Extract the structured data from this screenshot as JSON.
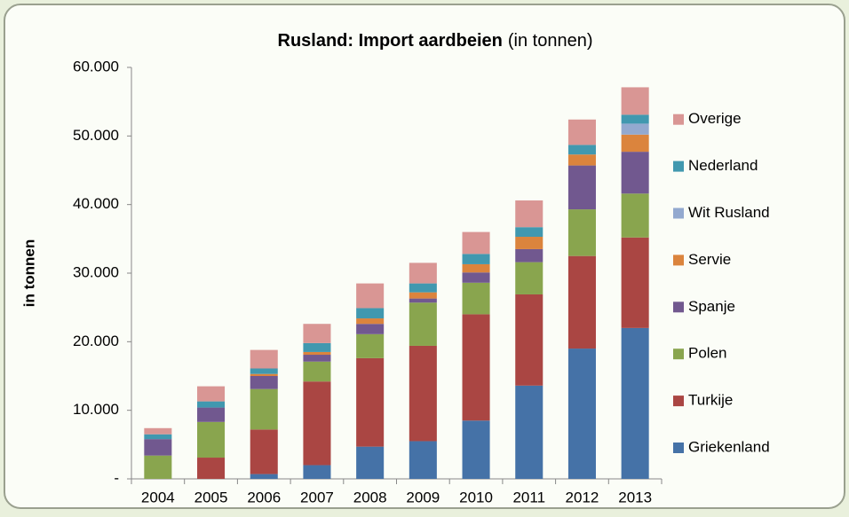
{
  "chart_data": {
    "type": "stacked_bar",
    "title": "Rusland: Import aardbeien",
    "subtitle": "(in tonnen)",
    "y_label": "in tonnen",
    "categories": [
      "2004",
      "2005",
      "2006",
      "2007",
      "2008",
      "2009",
      "2010",
      "2011",
      "2012",
      "2013"
    ],
    "series": [
      {
        "name": "Griekenland",
        "color": "#4572a7",
        "values": [
          0,
          0,
          700,
          2000,
          4700,
          5500,
          8500,
          13600,
          19000,
          22000
        ]
      },
      {
        "name": "Turkije",
        "color": "#aa4643",
        "values": [
          0,
          3100,
          6500,
          12200,
          12900,
          13900,
          15500,
          13300,
          13500,
          13200
        ]
      },
      {
        "name": "Polen",
        "color": "#89a54e",
        "values": [
          3400,
          5200,
          5900,
          2900,
          3500,
          6300,
          4600,
          4700,
          6800,
          6400
        ]
      },
      {
        "name": "Spanje",
        "color": "#71588f",
        "values": [
          2400,
          2100,
          1900,
          1000,
          1500,
          600,
          1500,
          1900,
          6400,
          6100
        ]
      },
      {
        "name": "Servie",
        "color": "#db843d",
        "values": [
          0,
          0,
          300,
          400,
          800,
          900,
          1200,
          1800,
          1600,
          2500
        ]
      },
      {
        "name": "Wit Rusland",
        "color": "#93a9cf",
        "values": [
          0,
          0,
          0,
          0,
          0,
          0,
          0,
          0,
          0,
          1600
        ]
      },
      {
        "name": "Nederland",
        "color": "#4198af",
        "values": [
          700,
          900,
          800,
          1300,
          1500,
          1300,
          1500,
          1400,
          1400,
          1300
        ]
      },
      {
        "name": "Overige",
        "color": "#d99694",
        "values": [
          900,
          2200,
          2700,
          2800,
          3600,
          3000,
          3200,
          3900,
          3700,
          4000
        ]
      }
    ],
    "ylim": [
      0,
      60000
    ],
    "yticks": [
      {
        "value": 0,
        "label": "-"
      },
      {
        "value": 10000,
        "label": "10.000"
      },
      {
        "value": 20000,
        "label": "20.000"
      },
      {
        "value": 30000,
        "label": "30.000"
      },
      {
        "value": 40000,
        "label": "40.000"
      },
      {
        "value": 50000,
        "label": "50.000"
      },
      {
        "value": 60000,
        "label": "60.000"
      }
    ],
    "legend": "right"
  }
}
